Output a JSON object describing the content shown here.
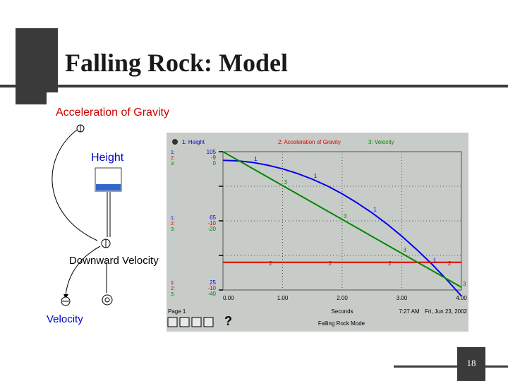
{
  "slide": {
    "title": "Falling Rock: Model",
    "page_number": "18"
  },
  "diagram": {
    "acceleration_label": "Acceleration of Gravity",
    "height_label": "Height",
    "velocity_label": "Downward Velocity",
    "output_label": "Velocity"
  },
  "graph": {
    "legend": [
      "1: Height",
      "2: Acceleration of Gravity",
      "3: Velocity"
    ],
    "series_numbers": [
      "1:",
      "2:",
      "3:"
    ],
    "axis_values_top": [
      "105",
      "-9",
      "0"
    ],
    "axis_values_mid": [
      "65",
      "-10",
      "-20"
    ],
    "axis_values_bottom": [
      "25",
      "-10",
      "-40"
    ],
    "x_ticks": [
      "0.00",
      "1.00",
      "2.00",
      "3.00",
      "4.00"
    ],
    "page_label": "Page 1",
    "x_label": "Seconds",
    "time": "7:27 AM",
    "date": "Fri, Jun 23, 2002",
    "model_name": "Falling Rock Mode",
    "help_symbol": "?"
  },
  "chart_data": {
    "type": "line",
    "x": [
      0,
      0.25,
      0.5,
      0.75,
      1,
      1.25,
      1.5,
      1.75,
      2,
      2.25,
      2.5,
      2.75,
      3,
      3.25,
      3.5,
      3.75,
      4
    ],
    "xlim": [
      0,
      4
    ],
    "series": [
      {
        "name": "1: Height",
        "color": "#0000ee",
        "ylim": [
          25,
          105
        ],
        "values": [
          100,
          99.7,
          98.8,
          97.2,
          95.1,
          92.4,
          89.1,
          85.2,
          80.6,
          75.4,
          69.6,
          63.2,
          56.1,
          48.4,
          40.1,
          31.1,
          21.5
        ]
      },
      {
        "name": "2: Acceleration of Gravity",
        "color": "#dd0000",
        "ylim": [
          -10,
          -9
        ],
        "values": [
          -9.8,
          -9.8,
          -9.8,
          -9.8,
          -9.8,
          -9.8,
          -9.8,
          -9.8,
          -9.8,
          -9.8,
          -9.8,
          -9.8,
          -9.8,
          -9.8,
          -9.8,
          -9.8,
          -9.8
        ]
      },
      {
        "name": "3: Velocity",
        "color": "#008800",
        "ylim": [
          -40,
          0
        ],
        "values": [
          0,
          -2.45,
          -4.9,
          -7.35,
          -9.8,
          -12.25,
          -14.7,
          -17.15,
          -19.6,
          -22.05,
          -24.5,
          -26.95,
          -29.4,
          -31.85,
          -34.3,
          -36.75,
          -39.2
        ]
      }
    ],
    "grid": true
  },
  "colors": {
    "plot_background": "#c8ccc8",
    "diagram_label": "#cc0000",
    "height_label": "#0000cc",
    "frame": "#3a3a3a"
  }
}
